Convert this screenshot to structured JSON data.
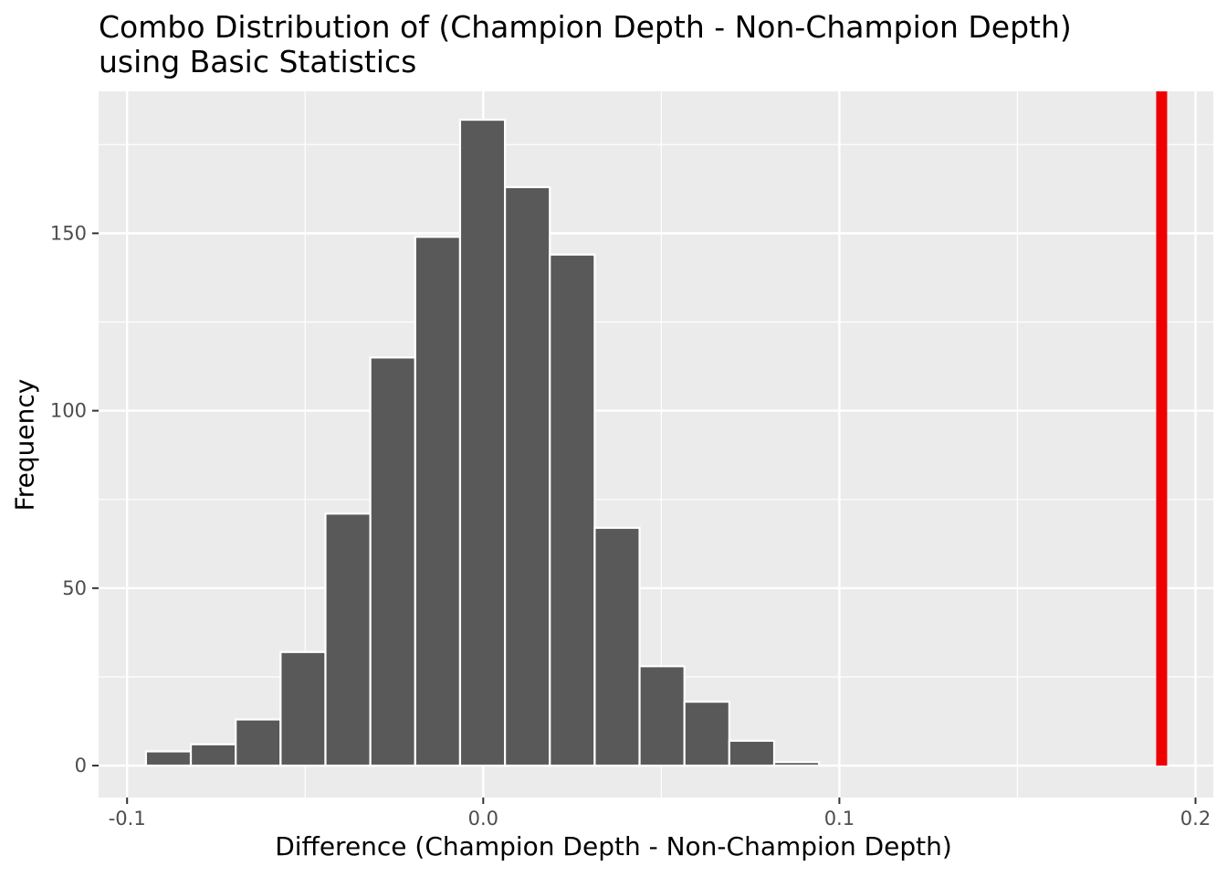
{
  "chart_data": {
    "type": "bar",
    "subtype": "histogram",
    "title": "Combo Distribution of (Champion Depth - Non-Champion Depth)",
    "subtitle": "using Basic Statistics",
    "xlabel": "Difference (Champion Depth - Non-Champion Depth)",
    "ylabel": "Frequency",
    "xlim": [
      -0.108,
      0.205
    ],
    "ylim": [
      -9,
      190
    ],
    "x_ticks": [
      -0.1,
      0.0,
      0.1,
      0.2
    ],
    "x_tick_labels": [
      "-0.1",
      "0.0",
      "0.1",
      "0.2"
    ],
    "y_ticks": [
      0,
      50,
      100,
      150
    ],
    "y_tick_labels": [
      "0",
      "50",
      "100",
      "150"
    ],
    "bin_width": 0.0126,
    "bins": [
      {
        "x0": -0.0947,
        "count": 4
      },
      {
        "x0": -0.0821,
        "count": 6
      },
      {
        "x0": -0.0695,
        "count": 13
      },
      {
        "x0": -0.0569,
        "count": 32
      },
      {
        "x0": -0.0443,
        "count": 71
      },
      {
        "x0": -0.0317,
        "count": 115
      },
      {
        "x0": -0.0191,
        "count": 149
      },
      {
        "x0": -0.0065,
        "count": 182
      },
      {
        "x0": 0.0061,
        "count": 163
      },
      {
        "x0": 0.0187,
        "count": 144
      },
      {
        "x0": 0.0313,
        "count": 67
      },
      {
        "x0": 0.0439,
        "count": 28
      },
      {
        "x0": 0.0565,
        "count": 18
      },
      {
        "x0": 0.0691,
        "count": 7
      },
      {
        "x0": 0.0817,
        "count": 1
      }
    ],
    "reference_line": {
      "x": 0.1905,
      "color": "#ee0000"
    },
    "colors": {
      "bar_fill": "#595959",
      "bar_stroke": "#ffffff",
      "panel": "#ebebeb",
      "grid": "#ffffff"
    },
    "grid": true,
    "legend": "none"
  }
}
